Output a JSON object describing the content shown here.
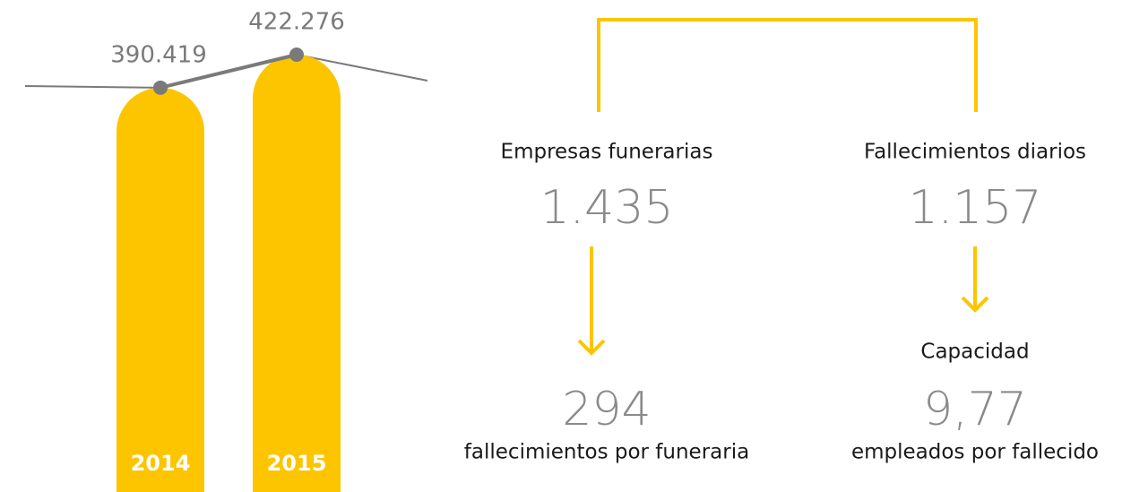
{
  "chart_data": {
    "type": "bar",
    "categories": [
      "2014",
      "2015"
    ],
    "values": [
      390419,
      422276
    ],
    "value_labels": [
      "390.419",
      "422.276"
    ],
    "color": "#fcc500",
    "line_color": "#7a7a7a"
  },
  "stats": [
    {
      "label": "Empresas funerarias",
      "value": "1.435",
      "result": "294",
      "result_label": "fallecimientos por funeraria"
    },
    {
      "label": "Fallecimientos diarios",
      "value": "1.157",
      "sublabel": "Capacidad",
      "result": "9,77",
      "result_label": "empleados por fallecido"
    }
  ]
}
